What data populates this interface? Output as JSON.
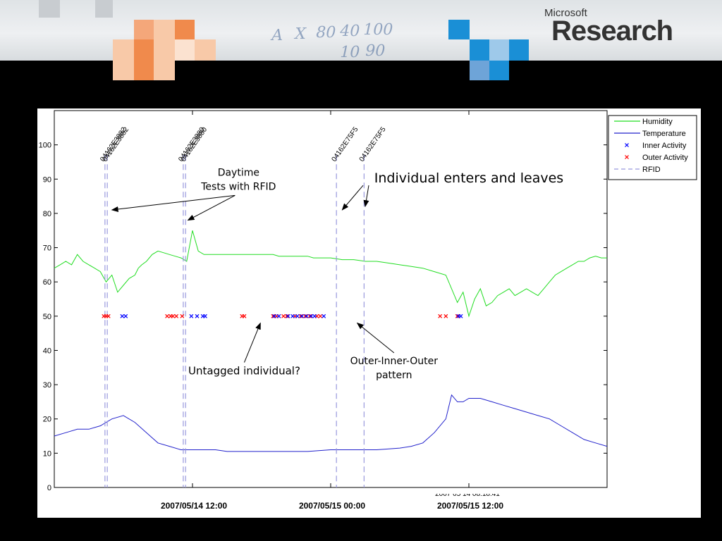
{
  "logo": {
    "small": "Microsoft",
    "big": "Research"
  },
  "banner_sketch_text": [
    "A",
    "X",
    "80",
    "40",
    "100",
    "10",
    "90"
  ],
  "colors": {
    "humidity": "#22dd22",
    "temperature": "#2222cc",
    "inner": "#0000ff",
    "outer": "#ff0000",
    "rfid": "#9999dd",
    "axis": "#000000"
  },
  "chart_data": {
    "type": "line",
    "grid": false,
    "legend_position": "top-right",
    "ylim": [
      0,
      110
    ],
    "yticks": [
      0,
      10,
      20,
      30,
      40,
      50,
      60,
      70,
      80,
      90,
      100
    ],
    "xlim": [
      "2007/05/14 00:00",
      "2007/05/16 00:00"
    ],
    "xtick_labels": [
      "2007/05/14 12:00",
      "2007/05/15 00:00",
      "2007/05/15 12:00"
    ],
    "cut_off_label": "2007 05 14 08:18:41",
    "legend": [
      "Humidity",
      "Temperature",
      "Inner Activity",
      "Outer Activity",
      "RFID"
    ],
    "series": [
      {
        "name": "Humidity",
        "type": "line",
        "x": [
          0.0,
          0.5,
          1.0,
          1.5,
          2.0,
          2.5,
          3.0,
          3.5,
          4.0,
          4.5,
          5.0,
          5.5,
          6.0,
          6.5,
          7.0,
          7.3,
          7.6,
          8.0,
          8.5,
          9.0,
          9.5,
          10.0,
          10.5,
          11.0,
          11.5,
          12.0,
          12.5,
          13.0,
          13.5,
          14.0,
          14.5,
          15.0,
          15.5,
          16.0,
          16.5,
          17.0,
          17.5,
          18.0,
          18.5,
          19.0,
          19.5,
          20.0,
          20.5,
          21.0,
          21.5,
          22.0,
          22.5,
          23.0,
          23.5,
          24.0,
          25.0,
          26.0,
          27.0,
          28.0,
          29.0,
          30.0,
          31.0,
          32.0,
          33.0,
          34.0,
          34.5,
          35.0,
          35.5,
          36.0,
          36.5,
          37.0,
          37.5,
          38.0,
          38.5,
          39.0,
          39.5,
          40.0,
          40.5,
          41.0,
          41.5,
          42.0,
          42.5,
          43.0,
          43.5,
          44.0,
          44.5,
          45.0,
          45.5,
          46.0,
          46.5,
          47.0,
          47.5,
          48.0
        ],
        "y": [
          64,
          65,
          66,
          65,
          68,
          66,
          65,
          64,
          63,
          60,
          62,
          57,
          59,
          61,
          62,
          64,
          65,
          66,
          68,
          69,
          68.5,
          68,
          67.5,
          67,
          66,
          75,
          69,
          68,
          68,
          68,
          68,
          68,
          68,
          68,
          68,
          68,
          68,
          68,
          68,
          68,
          67.5,
          67.5,
          67.5,
          67.5,
          67.5,
          67.5,
          67,
          67,
          67,
          67,
          66.5,
          66.5,
          66,
          66,
          65.5,
          65,
          64.5,
          64,
          63,
          62,
          58,
          54,
          57,
          50,
          55,
          58,
          53,
          54,
          56,
          57,
          58,
          56,
          57,
          58,
          57,
          56,
          58,
          60,
          62,
          63,
          64,
          65,
          66,
          66,
          67,
          67.5,
          67,
          67
        ]
      },
      {
        "name": "Temperature",
        "type": "line",
        "x": [
          0.0,
          1.0,
          2.0,
          3.0,
          4.0,
          5.0,
          6.0,
          7.0,
          8.0,
          9.0,
          10.0,
          11.0,
          12.0,
          13.0,
          14.0,
          15.0,
          16.0,
          18.0,
          20.0,
          22.0,
          24.0,
          26.0,
          28.0,
          30.0,
          31.0,
          32.0,
          33.0,
          34.0,
          34.5,
          35.0,
          35.5,
          36.0,
          37.0,
          38.0,
          39.0,
          40.0,
          41.0,
          42.0,
          43.0,
          44.0,
          45.0,
          46.0,
          47.0,
          48.0
        ],
        "y": [
          15,
          16,
          17,
          17,
          18,
          20,
          21,
          19,
          16,
          13,
          12,
          11,
          11,
          11,
          11,
          10.5,
          10.5,
          10.5,
          10.5,
          10.5,
          11,
          11,
          11,
          11.5,
          12,
          13,
          16,
          20,
          27,
          25,
          25,
          26,
          26,
          25,
          24,
          23,
          22,
          21,
          20,
          18,
          16,
          14,
          13,
          12
        ]
      },
      {
        "name": "Inner Activity",
        "type": "scatter",
        "marker": "x",
        "x": [
          5.9,
          6.2,
          11.9,
          12.4,
          12.9,
          13.1,
          19.1,
          19.5,
          20.3,
          20.7,
          21.1,
          21.5,
          21.9,
          22.3,
          22.6,
          23.4,
          35.1,
          35.3
        ],
        "y": [
          50,
          50,
          50,
          50,
          50,
          50,
          50,
          50,
          50,
          50,
          50,
          50,
          50,
          50,
          50,
          50,
          50,
          50
        ]
      },
      {
        "name": "Outer Activity",
        "type": "scatter",
        "marker": "x",
        "x": [
          4.3,
          4.5,
          4.7,
          9.8,
          10.1,
          10.3,
          10.6,
          11.1,
          16.3,
          16.5,
          19.0,
          19.3,
          19.9,
          20.2,
          20.9,
          21.4,
          21.8,
          22.2,
          22.8,
          23.1,
          33.5,
          34.0,
          35.0
        ],
        "y": [
          50,
          50,
          50,
          50,
          50,
          50,
          50,
          50,
          50,
          50,
          50,
          50,
          50,
          50,
          50,
          50,
          50,
          50,
          50,
          50,
          50,
          50,
          50
        ]
      },
      {
        "name": "RFID",
        "type": "vline",
        "x": [
          4.4,
          4.6,
          11.2,
          11.4,
          24.5,
          26.9
        ],
        "labels": [
          "04162E3882",
          "04162E3882",
          "04162E3880",
          "04162E3880",
          "04162E75F5",
          "04162E75F5"
        ]
      }
    ],
    "annotations": [
      {
        "text_lines": [
          "Daytime",
          "Tests with RFID"
        ],
        "text_at": [
          16.0,
          91.0
        ],
        "arrows_to": [
          [
            5.0,
            81.0
          ],
          [
            11.6,
            78.0
          ]
        ]
      },
      {
        "text_lines": [
          "Individual enters and leaves"
        ],
        "text_at": [
          36.0,
          89.0
        ],
        "arrows_to": [
          [
            25.0,
            81.0
          ],
          [
            27.0,
            82.0
          ]
        ]
      },
      {
        "text_lines": [
          "Untagged individual?"
        ],
        "text_at": [
          16.5,
          33.0
        ],
        "arrows_to": [
          [
            17.9,
            48.0
          ]
        ]
      },
      {
        "text_lines": [
          "Outer-Inner-Outer",
          "pattern"
        ],
        "text_at": [
          29.5,
          36.0
        ],
        "arrows_to": [
          [
            26.3,
            48.0
          ]
        ]
      }
    ]
  }
}
